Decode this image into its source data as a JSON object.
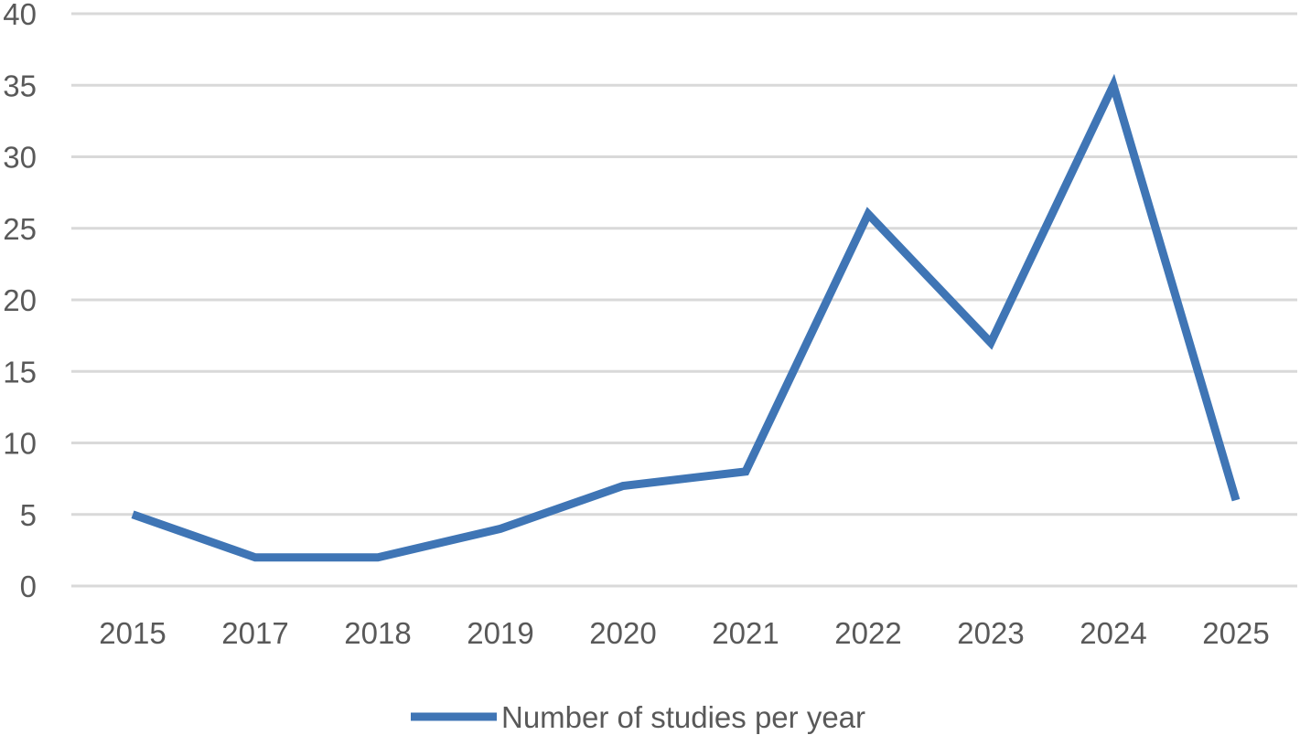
{
  "chart_data": {
    "type": "line",
    "title": "",
    "xlabel": "",
    "ylabel": "",
    "categories": [
      "2015",
      "2017",
      "2018",
      "2019",
      "2020",
      "2021",
      "2022",
      "2023",
      "2024",
      "2025"
    ],
    "series": [
      {
        "name": "Number of studies per year",
        "values": [
          5,
          2,
          2,
          4,
          7,
          8,
          26,
          17,
          35,
          6
        ],
        "color": "#3f75b5"
      }
    ],
    "ylim": [
      0,
      40
    ],
    "yticks": [
      "0",
      "5",
      "10",
      "15",
      "20",
      "25",
      "30",
      "35",
      "40"
    ],
    "grid": true,
    "legend_position": "bottom"
  }
}
